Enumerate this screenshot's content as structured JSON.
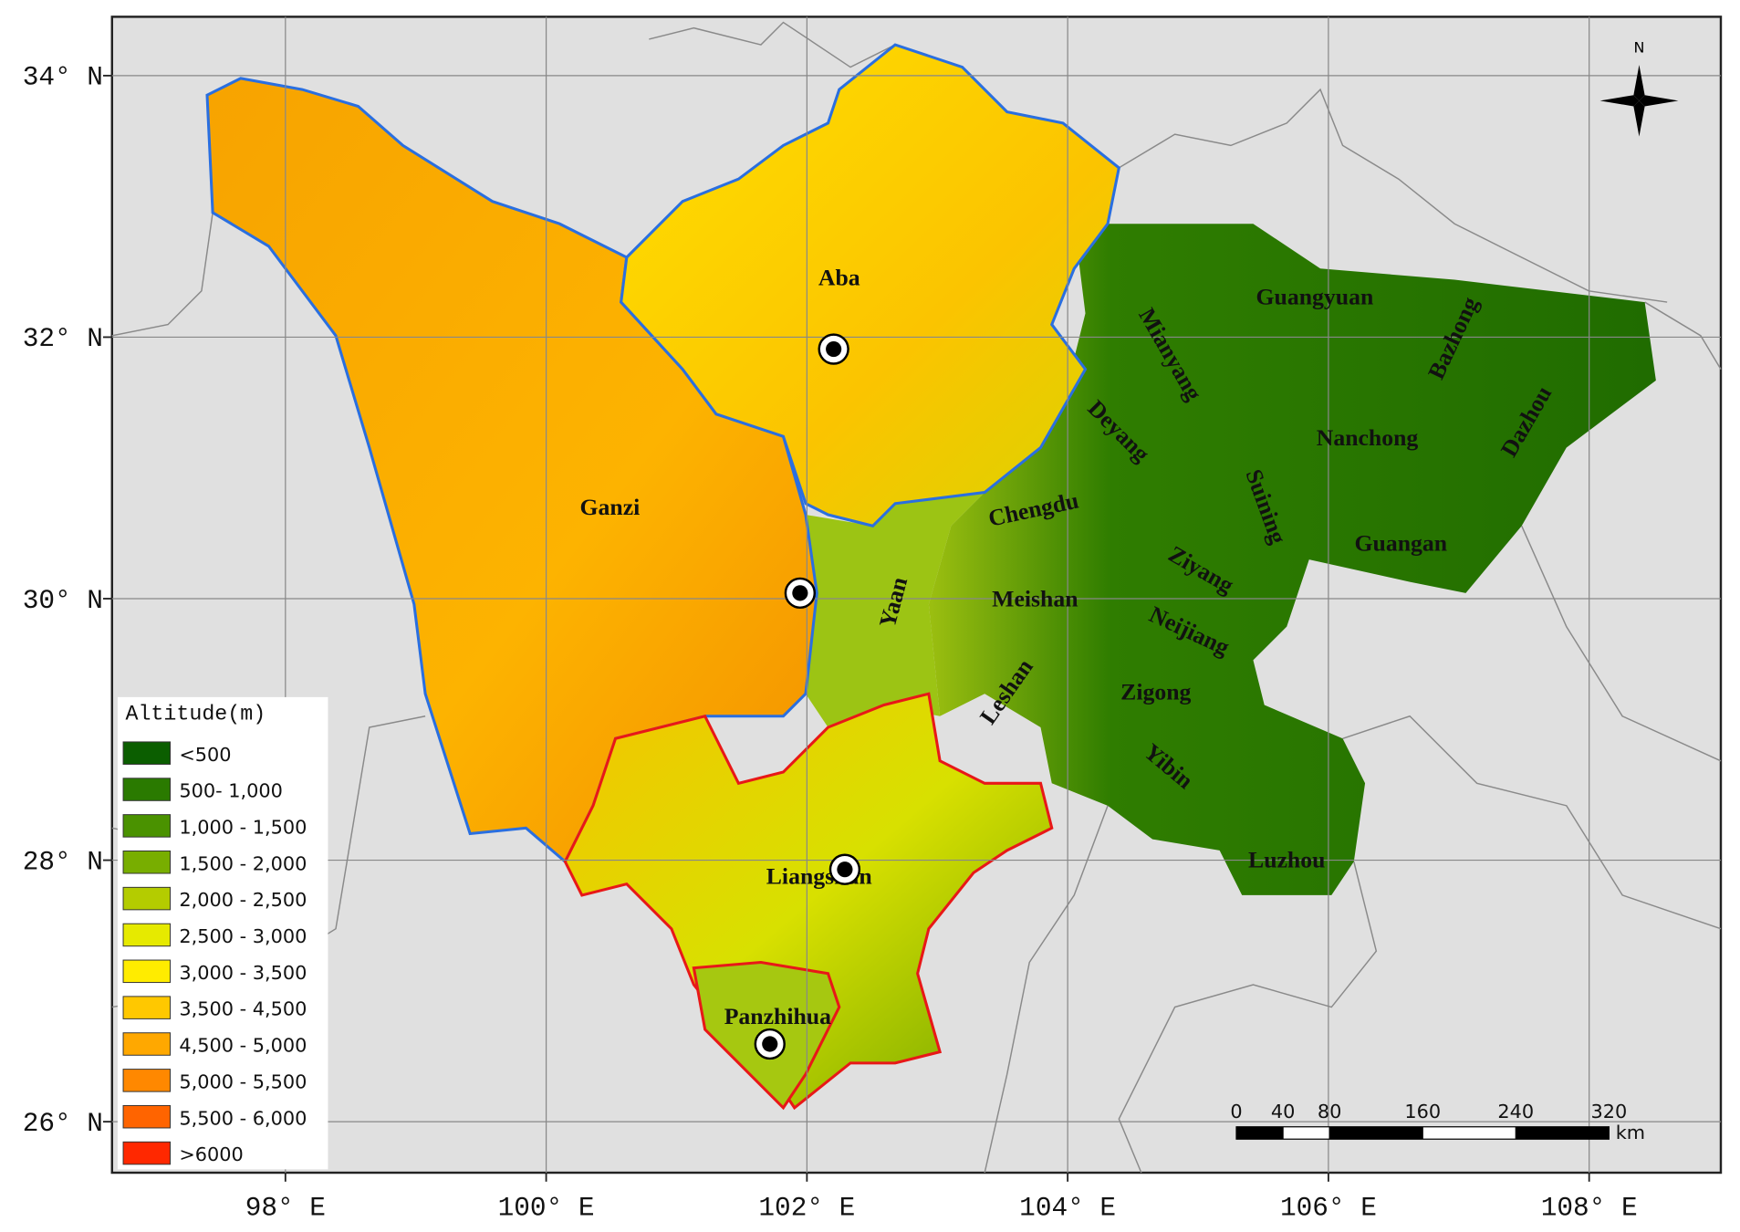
{
  "map": {
    "xlim": [
      96.67,
      109.01
    ],
    "ylim": [
      25.61,
      34.45
    ],
    "xticks": [
      {
        "value": 98,
        "label": "98° E"
      },
      {
        "value": 100,
        "label": "100° E"
      },
      {
        "value": 102,
        "label": "102° E"
      },
      {
        "value": 104,
        "label": "104° E"
      },
      {
        "value": 106,
        "label": "106° E"
      },
      {
        "value": 108,
        "label": "108° E"
      }
    ],
    "yticks": [
      {
        "value": 26,
        "label": "26° N"
      },
      {
        "value": 28,
        "label": "28° N"
      },
      {
        "value": 30,
        "label": "30° N"
      },
      {
        "value": 32,
        "label": "32° N"
      },
      {
        "value": 34,
        "label": "34° N"
      }
    ],
    "regions": [
      "Aba",
      "Ganzi",
      "Liangshan",
      "Panzhihua",
      "Guangyuan",
      "Bazhong",
      "Mianyang",
      "Deyang",
      "Nanchong",
      "Dazhou",
      "Chengdu",
      "Suining",
      "Guangan",
      "Yaan",
      "Meishan",
      "Ziyang",
      "Neijiang",
      "Leshan",
      "Zigong",
      "Yibin",
      "Luzhou"
    ],
    "north_label": "N",
    "legend": {
      "title": "Altitude(m)",
      "items": [
        {
          "label": "<500",
          "color": "#0b5e00"
        },
        {
          "label": "500- 1,000",
          "color": "#2a7a00"
        },
        {
          "label": "1,000 - 1,500",
          "color": "#4a9200"
        },
        {
          "label": "1,500 - 2,000",
          "color": "#78ae00"
        },
        {
          "label": "2,000 - 2,500",
          "color": "#b4cc00"
        },
        {
          "label": "2,500 - 3,000",
          "color": "#e6ea00"
        },
        {
          "label": "3,000 - 3,500",
          "color": "#ffec00"
        },
        {
          "label": "3,500 - 4,500",
          "color": "#ffc800"
        },
        {
          "label": "4,500 - 5,000",
          "color": "#ffa800"
        },
        {
          "label": "5,000 - 5,500",
          "color": "#ff8800"
        },
        {
          "label": "5,500 - 6,000",
          "color": "#ff6400"
        },
        {
          "label": ">6000",
          "color": "#ff2800"
        }
      ]
    },
    "scale_bar": {
      "ticks": [
        0,
        40,
        80,
        160,
        240,
        320
      ],
      "unit": "km"
    }
  }
}
